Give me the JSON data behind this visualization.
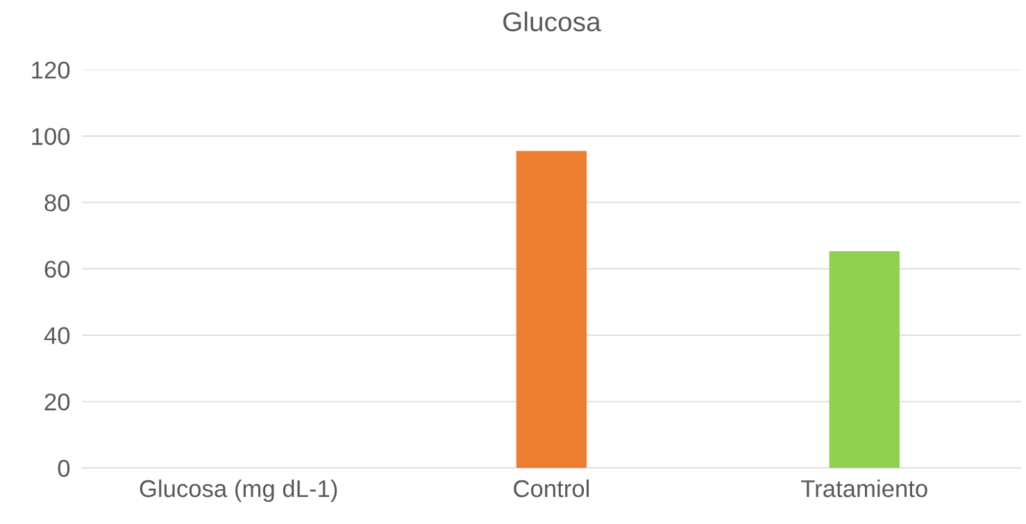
{
  "chart_data": {
    "type": "bar",
    "title": "Glucosa",
    "categories": [
      "Glucosa (mg dL-1)",
      "Control",
      "Tratamiento"
    ],
    "values": [
      null,
      95.5,
      65.3
    ],
    "colors": [
      null,
      "#ed7d31",
      "#92d050"
    ],
    "ylim": [
      0,
      120
    ],
    "yticks": [
      0,
      20,
      40,
      60,
      80,
      100,
      120
    ],
    "grid": "y"
  }
}
